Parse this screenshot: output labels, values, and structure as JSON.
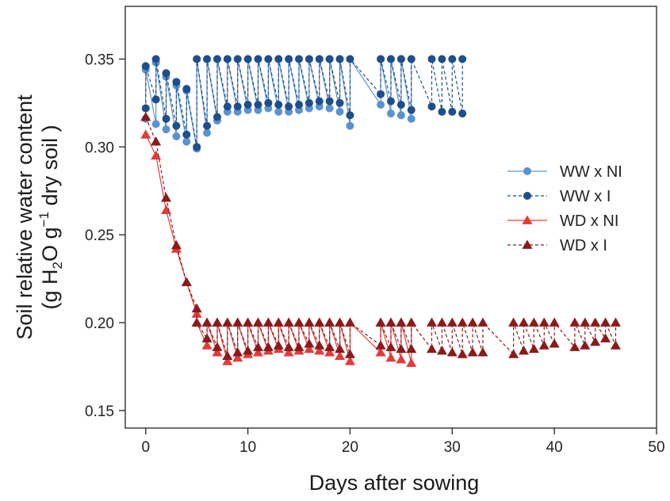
{
  "chart_data": {
    "type": "line",
    "title": "",
    "xlabel": "Days after sowing",
    "ylabel_line1": "Soil relative water content",
    "ylabel_line2_parts": [
      "(g H",
      "2",
      "O g",
      "−1",
      " dry soil )"
    ],
    "xlim": [
      -2,
      50
    ],
    "ylim": [
      0.14,
      0.38
    ],
    "xticks": [
      0,
      10,
      20,
      30,
      40,
      50
    ],
    "yticks": [
      0.15,
      0.2,
      0.25,
      0.3,
      0.35
    ],
    "ytick_labels": [
      "0.15",
      "0.20",
      "0.25",
      "0.30",
      "0.35"
    ],
    "xtick_labels": [
      "0",
      "10",
      "20",
      "30",
      "40",
      "50"
    ],
    "legend_position": "right",
    "series": [
      {
        "name": "WW x NI",
        "color": "#5b93cf",
        "marker": "circle",
        "linestyle": "solid",
        "x": [
          0,
          0,
          1,
          1,
          2,
          2,
          3,
          3,
          4,
          4,
          5,
          5,
          6,
          6,
          7,
          7,
          8,
          8,
          9,
          9,
          10,
          10,
          11,
          11,
          12,
          12,
          13,
          13,
          14,
          14,
          15,
          15,
          16,
          16,
          17,
          17,
          18,
          18,
          19,
          19,
          20,
          20,
          23,
          23,
          24,
          24,
          25,
          25,
          26,
          26
        ],
        "y": [
          0.316,
          0.344,
          0.313,
          0.348,
          0.31,
          0.34,
          0.306,
          0.335,
          0.303,
          0.332,
          0.299,
          0.35,
          0.308,
          0.35,
          0.315,
          0.35,
          0.32,
          0.35,
          0.32,
          0.35,
          0.321,
          0.35,
          0.321,
          0.35,
          0.322,
          0.35,
          0.32,
          0.35,
          0.32,
          0.35,
          0.321,
          0.35,
          0.322,
          0.35,
          0.323,
          0.35,
          0.322,
          0.35,
          0.32,
          0.35,
          0.312,
          0.35,
          0.324,
          0.35,
          0.319,
          0.35,
          0.318,
          0.35,
          0.316,
          0.35
        ]
      },
      {
        "name": "WW x I",
        "color": "#1f4e8c",
        "marker": "circle",
        "linestyle": "dashed",
        "x": [
          0,
          0,
          1,
          1,
          2,
          2,
          3,
          3,
          4,
          4,
          5,
          5,
          6,
          6,
          7,
          7,
          8,
          8,
          9,
          9,
          10,
          10,
          11,
          11,
          12,
          12,
          13,
          13,
          14,
          14,
          15,
          15,
          16,
          16,
          17,
          17,
          18,
          18,
          19,
          19,
          20,
          20,
          23,
          23,
          24,
          24,
          25,
          25,
          26,
          26,
          28,
          28,
          29,
          29,
          30,
          30,
          31,
          31
        ],
        "y": [
          0.322,
          0.346,
          0.327,
          0.35,
          0.316,
          0.342,
          0.312,
          0.337,
          0.307,
          0.333,
          0.3,
          0.35,
          0.312,
          0.35,
          0.317,
          0.35,
          0.323,
          0.35,
          0.323,
          0.35,
          0.324,
          0.35,
          0.324,
          0.35,
          0.325,
          0.35,
          0.324,
          0.35,
          0.323,
          0.35,
          0.324,
          0.35,
          0.325,
          0.35,
          0.326,
          0.35,
          0.326,
          0.35,
          0.325,
          0.35,
          0.318,
          0.35,
          0.33,
          0.35,
          0.326,
          0.35,
          0.324,
          0.35,
          0.321,
          0.35,
          0.323,
          0.35,
          0.32,
          0.35,
          0.32,
          0.35,
          0.319,
          0.35
        ]
      },
      {
        "name": "WD x NI",
        "color": "#e33b3b",
        "marker": "triangle",
        "linestyle": "solid",
        "x": [
          0,
          1,
          2,
          3,
          4,
          5,
          5,
          6,
          6,
          7,
          7,
          8,
          8,
          9,
          9,
          10,
          10,
          11,
          11,
          12,
          12,
          13,
          13,
          14,
          14,
          15,
          15,
          16,
          16,
          17,
          17,
          18,
          18,
          19,
          19,
          20,
          20,
          23,
          23,
          24,
          24,
          25,
          25,
          26,
          26
        ],
        "y": [
          0.307,
          0.295,
          0.264,
          0.242,
          0.223,
          0.205,
          0.2,
          0.187,
          0.2,
          0.183,
          0.2,
          0.178,
          0.2,
          0.18,
          0.2,
          0.182,
          0.2,
          0.183,
          0.2,
          0.184,
          0.2,
          0.185,
          0.2,
          0.183,
          0.2,
          0.184,
          0.2,
          0.185,
          0.2,
          0.184,
          0.2,
          0.183,
          0.2,
          0.181,
          0.2,
          0.178,
          0.2,
          0.183,
          0.2,
          0.18,
          0.2,
          0.179,
          0.2,
          0.177,
          0.2
        ]
      },
      {
        "name": "WD x I",
        "color": "#8b1a1a",
        "marker": "triangle",
        "linestyle": "dashed",
        "x": [
          0,
          1,
          2,
          3,
          4,
          5,
          5,
          6,
          6,
          7,
          7,
          8,
          8,
          9,
          9,
          10,
          10,
          11,
          11,
          12,
          12,
          13,
          13,
          14,
          14,
          15,
          15,
          16,
          16,
          17,
          17,
          18,
          18,
          19,
          19,
          20,
          20,
          23,
          23,
          24,
          24,
          25,
          25,
          26,
          26,
          28,
          28,
          29,
          29,
          30,
          30,
          31,
          31,
          32,
          32,
          33,
          33,
          36,
          36,
          37,
          37,
          38,
          38,
          39,
          39,
          40,
          40,
          42,
          42,
          43,
          43,
          44,
          44,
          45,
          45,
          46,
          46
        ],
        "y": [
          0.317,
          0.303,
          0.271,
          0.244,
          0.223,
          0.208,
          0.2,
          0.191,
          0.2,
          0.186,
          0.2,
          0.181,
          0.2,
          0.183,
          0.2,
          0.184,
          0.2,
          0.186,
          0.2,
          0.186,
          0.2,
          0.187,
          0.2,
          0.186,
          0.2,
          0.186,
          0.2,
          0.188,
          0.2,
          0.187,
          0.2,
          0.186,
          0.2,
          0.185,
          0.2,
          0.182,
          0.2,
          0.187,
          0.2,
          0.186,
          0.2,
          0.185,
          0.2,
          0.185,
          0.2,
          0.185,
          0.2,
          0.184,
          0.2,
          0.183,
          0.2,
          0.182,
          0.2,
          0.183,
          0.2,
          0.183,
          0.2,
          0.182,
          0.2,
          0.184,
          0.2,
          0.185,
          0.2,
          0.187,
          0.2,
          0.188,
          0.2,
          0.186,
          0.2,
          0.187,
          0.2,
          0.189,
          0.2,
          0.191,
          0.2,
          0.187,
          0.2
        ]
      }
    ]
  }
}
